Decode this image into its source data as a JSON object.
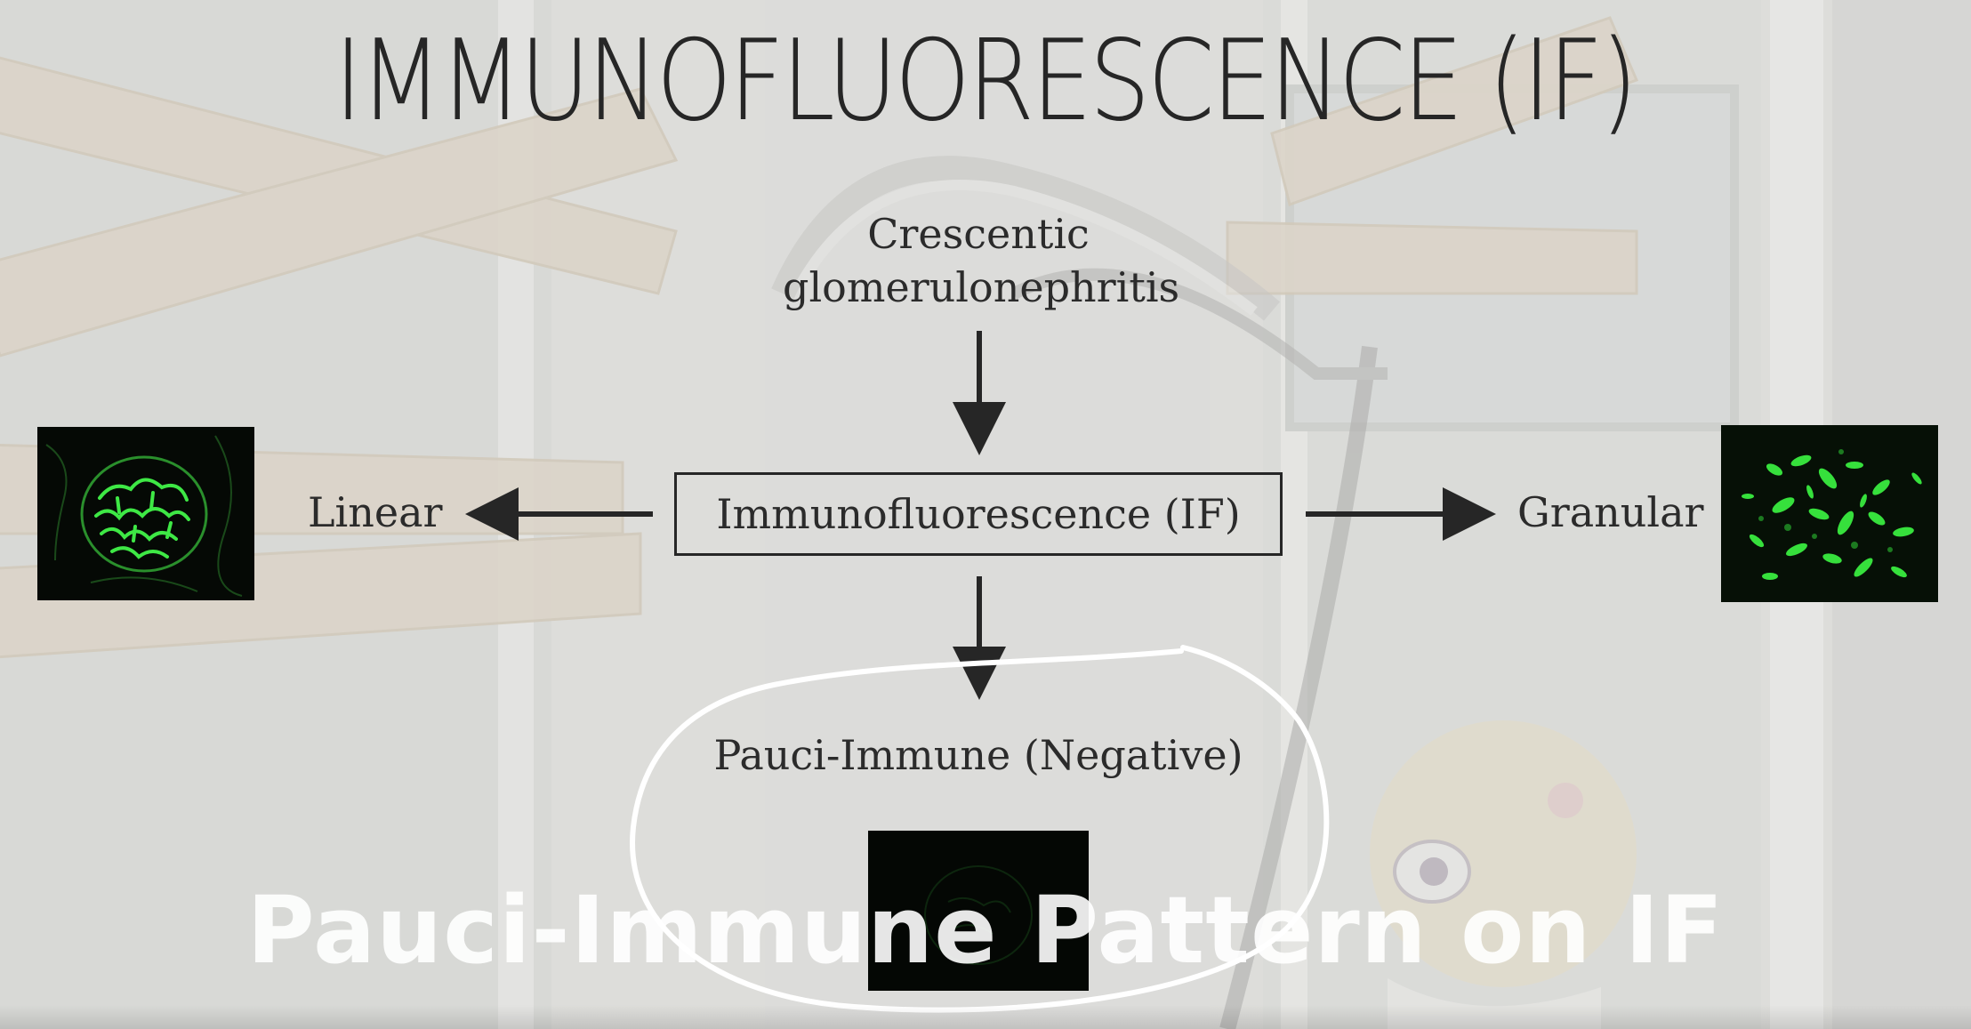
{
  "title": "IMMUNOFLUORESCENCE (IF)",
  "nodes": {
    "root_line1": "Crescentic",
    "root_line2": "glomerulonephritis",
    "center": "Immunofluorescence (IF)",
    "left": "Linear",
    "right": "Granular",
    "bottom": "Pauci-Immune (Negative)"
  },
  "caption": "Pauci-Immune Pattern on IF",
  "colors": {
    "text": "#2b2b2b",
    "fluorescence_green": "#33e03a",
    "micrograph_bg": "#050905",
    "annotation": "#ffffff"
  }
}
